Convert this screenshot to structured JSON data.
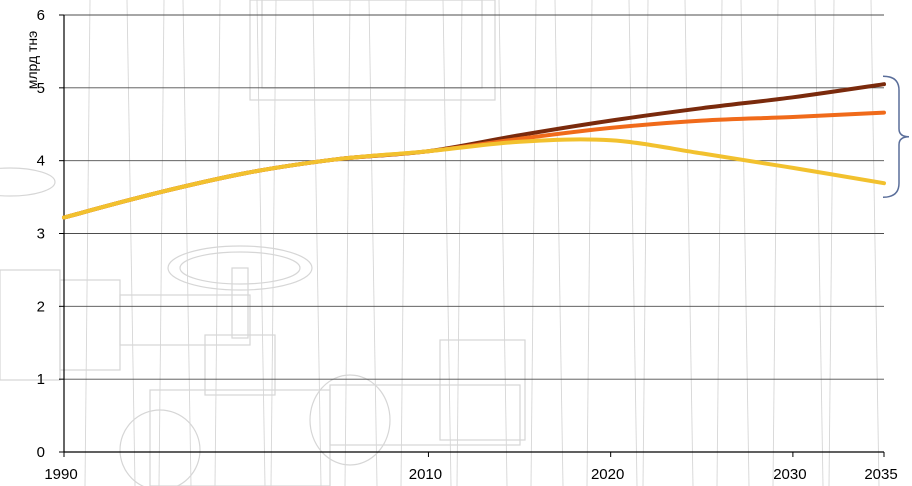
{
  "chart_data": {
    "type": "line",
    "title": "",
    "xlabel": "",
    "ylabel": "млрд тнэ",
    "x": [
      1990,
      1995,
      2000,
      2005,
      2010,
      2015,
      2020,
      2025,
      2030,
      2035
    ],
    "xticks": [
      "1990",
      "2010",
      "2020",
      "2030",
      "2035"
    ],
    "xlim": [
      1990,
      2035
    ],
    "ylim": [
      0,
      6
    ],
    "yticks": [
      "0",
      "1",
      "2",
      "3",
      "4",
      "5",
      "6"
    ],
    "grid": true,
    "legend": "none",
    "background": "faint sketch of industrial pipe valves",
    "bracket": "right side, spanning the three scenario endpoints",
    "series": [
      {
        "color": "#7a2a0c",
        "values": [
          3.22,
          3.55,
          3.83,
          4.02,
          4.13,
          4.35,
          4.55,
          4.72,
          4.87,
          5.05
        ]
      },
      {
        "color": "#f06a1a",
        "values": [
          3.22,
          3.55,
          3.83,
          4.02,
          4.13,
          4.3,
          4.45,
          4.55,
          4.6,
          4.66
        ]
      },
      {
        "color": "#f2c12e",
        "values": [
          3.22,
          3.55,
          3.83,
          4.02,
          4.13,
          4.26,
          4.28,
          4.1,
          3.9,
          3.69
        ]
      }
    ]
  }
}
